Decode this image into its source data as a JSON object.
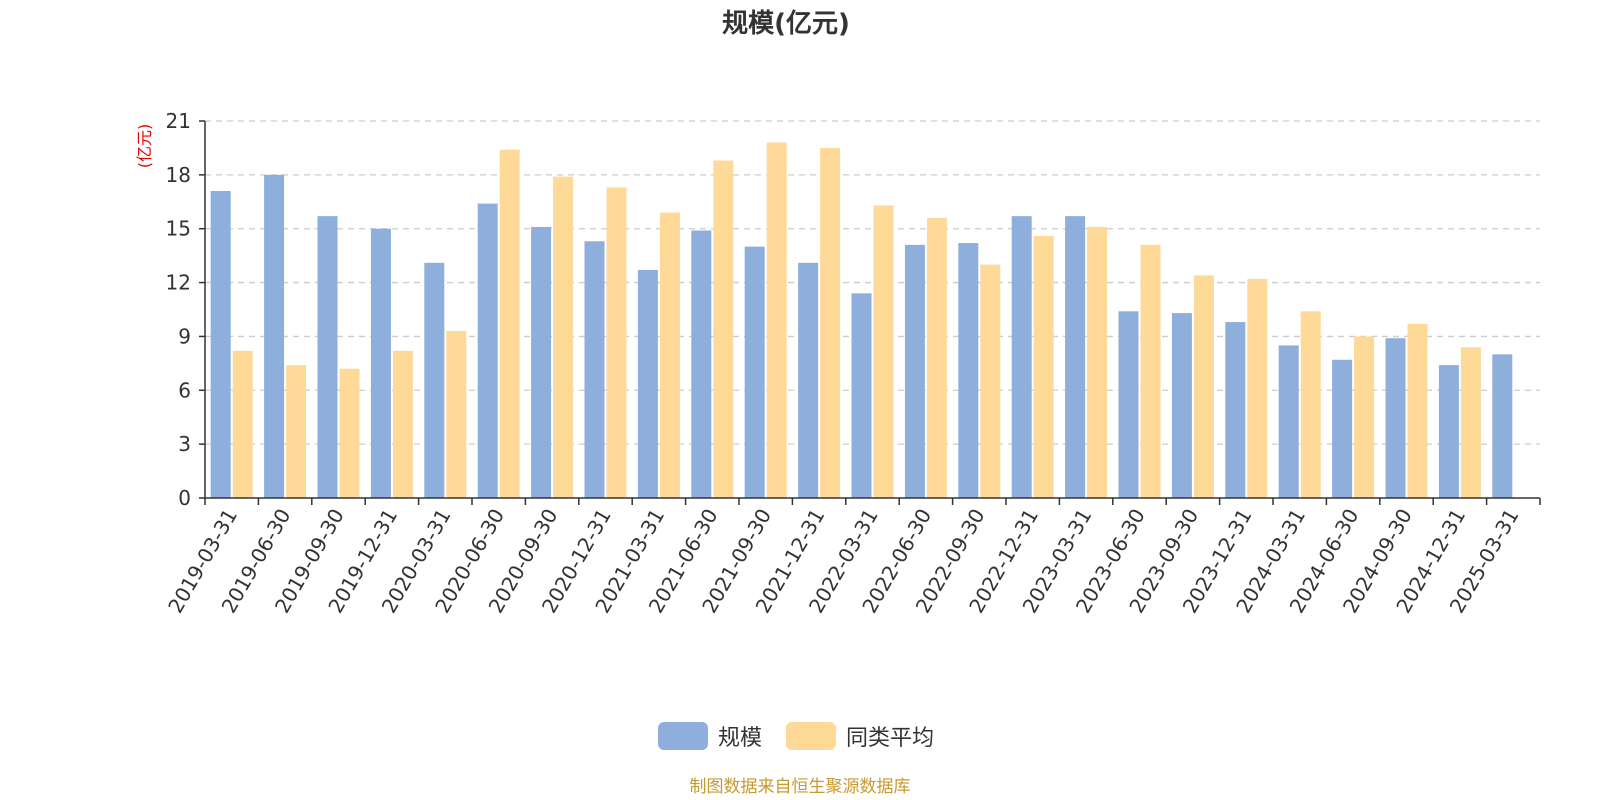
{
  "chart_data": {
    "type": "bar",
    "title": "规模(亿元)",
    "ylabel": "(亿元)",
    "xlabel": "",
    "ylim": [
      0,
      21
    ],
    "yticks": [
      0,
      3,
      6,
      9,
      12,
      15,
      18,
      21
    ],
    "grid": true,
    "legend_position": "bottom",
    "categories": [
      "2019-03-31",
      "2019-06-30",
      "2019-09-30",
      "2019-12-31",
      "2020-03-31",
      "2020-06-30",
      "2020-09-30",
      "2020-12-31",
      "2021-03-31",
      "2021-06-30",
      "2021-09-30",
      "2021-12-31",
      "2022-03-31",
      "2022-06-30",
      "2022-09-30",
      "2022-12-31",
      "2023-03-31",
      "2023-06-30",
      "2023-09-30",
      "2023-12-31",
      "2024-03-31",
      "2024-06-30",
      "2024-09-30",
      "2024-12-31",
      "2025-03-31"
    ],
    "series": [
      {
        "name": "规模",
        "color": "#8eaedb",
        "values": [
          17.1,
          18.0,
          15.7,
          15.0,
          13.1,
          16.4,
          15.1,
          14.3,
          12.7,
          14.9,
          14.0,
          13.1,
          11.4,
          14.1,
          14.2,
          15.7,
          15.7,
          10.4,
          10.3,
          9.8,
          8.5,
          7.7,
          8.9,
          7.4,
          8.0
        ]
      },
      {
        "name": "同类平均",
        "color": "#fed998",
        "values": [
          8.2,
          7.4,
          7.2,
          8.2,
          9.3,
          19.4,
          17.9,
          17.3,
          15.9,
          18.8,
          19.8,
          19.5,
          16.3,
          15.6,
          13.0,
          14.6,
          15.1,
          14.1,
          12.4,
          12.2,
          10.4,
          9.0,
          9.7,
          8.4,
          null
        ]
      }
    ]
  },
  "source": "制图数据来自恒生聚源数据库"
}
